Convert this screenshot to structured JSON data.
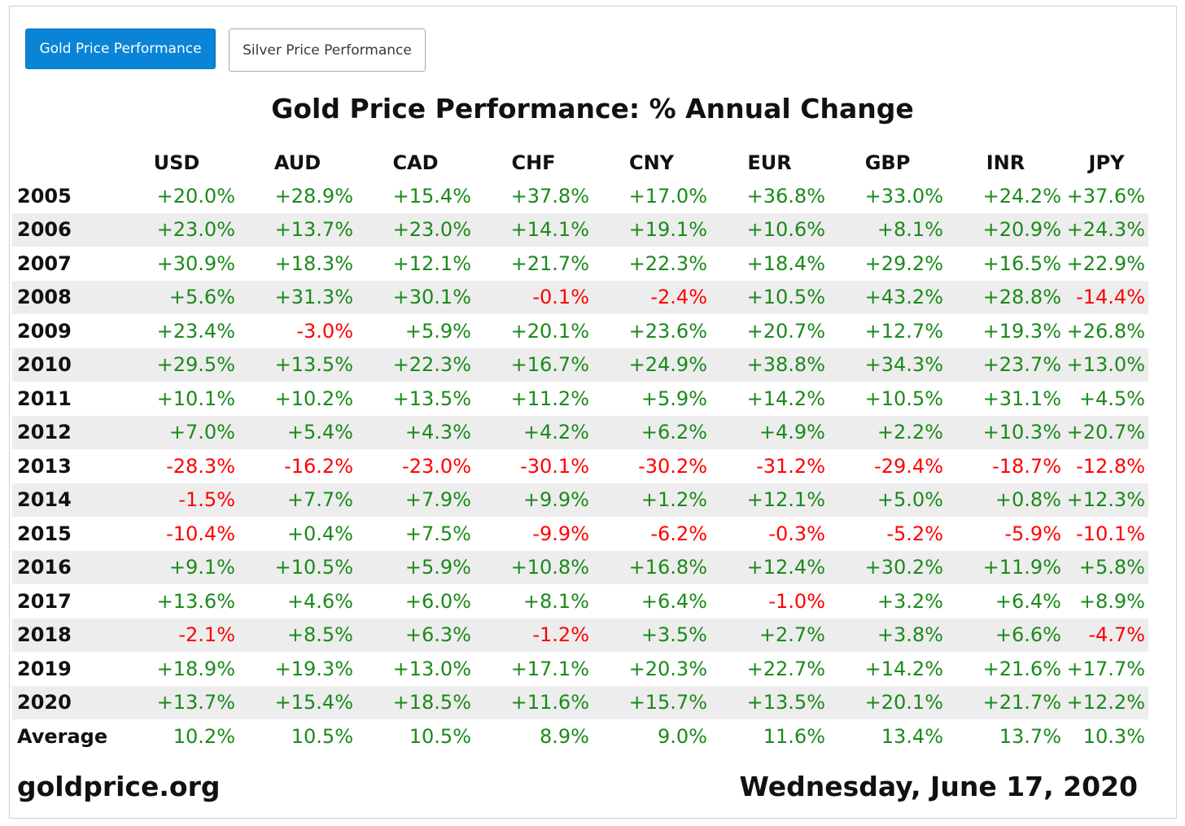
{
  "tabs": [
    {
      "label": "Gold Price Performance",
      "active": true
    },
    {
      "label": "Silver Price Performance",
      "active": false
    }
  ],
  "title": "Gold Price Performance: % Annual Change",
  "currencies": [
    "USD",
    "AUD",
    "CAD",
    "CHF",
    "CNY",
    "EUR",
    "GBP",
    "INR",
    "JPY"
  ],
  "rows": [
    {
      "year": "2005",
      "values": [
        "+20.0%",
        "+28.9%",
        "+15.4%",
        "+37.8%",
        "+17.0%",
        "+36.8%",
        "+33.0%",
        "+24.2%",
        "+37.6%"
      ]
    },
    {
      "year": "2006",
      "values": [
        "+23.0%",
        "+13.7%",
        "+23.0%",
        "+14.1%",
        "+19.1%",
        "+10.6%",
        "+8.1%",
        "+20.9%",
        "+24.3%"
      ]
    },
    {
      "year": "2007",
      "values": [
        "+30.9%",
        "+18.3%",
        "+12.1%",
        "+21.7%",
        "+22.3%",
        "+18.4%",
        "+29.2%",
        "+16.5%",
        "+22.9%"
      ]
    },
    {
      "year": "2008",
      "values": [
        "+5.6%",
        "+31.3%",
        "+30.1%",
        "-0.1%",
        "-2.4%",
        "+10.5%",
        "+43.2%",
        "+28.8%",
        "-14.4%"
      ]
    },
    {
      "year": "2009",
      "values": [
        "+23.4%",
        "-3.0%",
        "+5.9%",
        "+20.1%",
        "+23.6%",
        "+20.7%",
        "+12.7%",
        "+19.3%",
        "+26.8%"
      ]
    },
    {
      "year": "2010",
      "values": [
        "+29.5%",
        "+13.5%",
        "+22.3%",
        "+16.7%",
        "+24.9%",
        "+38.8%",
        "+34.3%",
        "+23.7%",
        "+13.0%"
      ]
    },
    {
      "year": "2011",
      "values": [
        "+10.1%",
        "+10.2%",
        "+13.5%",
        "+11.2%",
        "+5.9%",
        "+14.2%",
        "+10.5%",
        "+31.1%",
        "+4.5%"
      ]
    },
    {
      "year": "2012",
      "values": [
        "+7.0%",
        "+5.4%",
        "+4.3%",
        "+4.2%",
        "+6.2%",
        "+4.9%",
        "+2.2%",
        "+10.3%",
        "+20.7%"
      ]
    },
    {
      "year": "2013",
      "values": [
        "-28.3%",
        "-16.2%",
        "-23.0%",
        "-30.1%",
        "-30.2%",
        "-31.2%",
        "-29.4%",
        "-18.7%",
        "-12.8%"
      ]
    },
    {
      "year": "2014",
      "values": [
        "-1.5%",
        "+7.7%",
        "+7.9%",
        "+9.9%",
        "+1.2%",
        "+12.1%",
        "+5.0%",
        "+0.8%",
        "+12.3%"
      ]
    },
    {
      "year": "2015",
      "values": [
        "-10.4%",
        "+0.4%",
        "+7.5%",
        "-9.9%",
        "-6.2%",
        "-0.3%",
        "-5.2%",
        "-5.9%",
        "-10.1%"
      ]
    },
    {
      "year": "2016",
      "values": [
        "+9.1%",
        "+10.5%",
        "+5.9%",
        "+10.8%",
        "+16.8%",
        "+12.4%",
        "+30.2%",
        "+11.9%",
        "+5.8%"
      ]
    },
    {
      "year": "2017",
      "values": [
        "+13.6%",
        "+4.6%",
        "+6.0%",
        "+8.1%",
        "+6.4%",
        "-1.0%",
        "+3.2%",
        "+6.4%",
        "+8.9%"
      ]
    },
    {
      "year": "2018",
      "values": [
        "-2.1%",
        "+8.5%",
        "+6.3%",
        "-1.2%",
        "+3.5%",
        "+2.7%",
        "+3.8%",
        "+6.6%",
        "-4.7%"
      ]
    },
    {
      "year": "2019",
      "values": [
        "+18.9%",
        "+19.3%",
        "+13.0%",
        "+17.1%",
        "+20.3%",
        "+22.7%",
        "+14.2%",
        "+21.6%",
        "+17.7%"
      ]
    },
    {
      "year": "2020",
      "values": [
        "+13.7%",
        "+15.4%",
        "+18.5%",
        "+11.6%",
        "+15.7%",
        "+13.5%",
        "+20.1%",
        "+21.7%",
        "+12.2%"
      ]
    }
  ],
  "average": {
    "label": "Average",
    "values": [
      "10.2%",
      "10.5%",
      "10.5%",
      "8.9%",
      "9.0%",
      "11.6%",
      "13.4%",
      "13.7%",
      "10.3%"
    ]
  },
  "footer": {
    "site": "goldprice.org",
    "date": "Wednesday, June 17, 2020"
  },
  "colors": {
    "positive": "#1a8a1a",
    "negative": "#ff0000",
    "tab_active": "#0a84d6",
    "row_alt": "#ededed"
  }
}
